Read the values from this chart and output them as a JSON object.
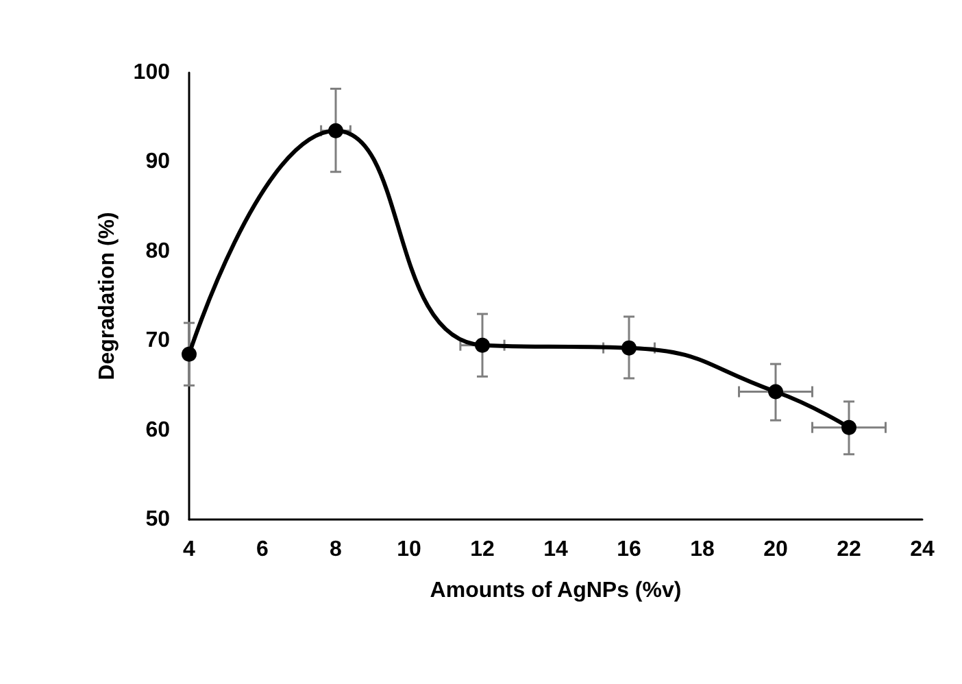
{
  "chart_data": {
    "type": "line",
    "xlabel": "Amounts of AgNPs (%v)",
    "ylabel": "Degradation (%)",
    "x": [
      4,
      8,
      12,
      16,
      20,
      22
    ],
    "values": [
      68.5,
      93.5,
      69.5,
      69.2,
      64.3,
      60.3
    ],
    "errors": [
      [
        65,
        72
      ],
      [
        88.9,
        98.2
      ],
      [
        66,
        73
      ],
      [
        65.8,
        72.7
      ],
      [
        61.1,
        67.4
      ],
      [
        57.3,
        63.2
      ]
    ],
    "xerrors": [
      null,
      0.4,
      0.6,
      0.7,
      1,
      1
    ],
    "color": "#000000",
    "marker": "circle",
    "line_style": "solid",
    "grid": false,
    "xlim": [
      4,
      24
    ],
    "xticks": [
      4,
      6,
      8,
      10,
      12,
      14,
      16,
      18,
      20,
      22,
      24
    ],
    "ylim": [
      50,
      100
    ],
    "yticks": [
      50,
      60,
      70,
      80,
      90,
      100
    ]
  }
}
